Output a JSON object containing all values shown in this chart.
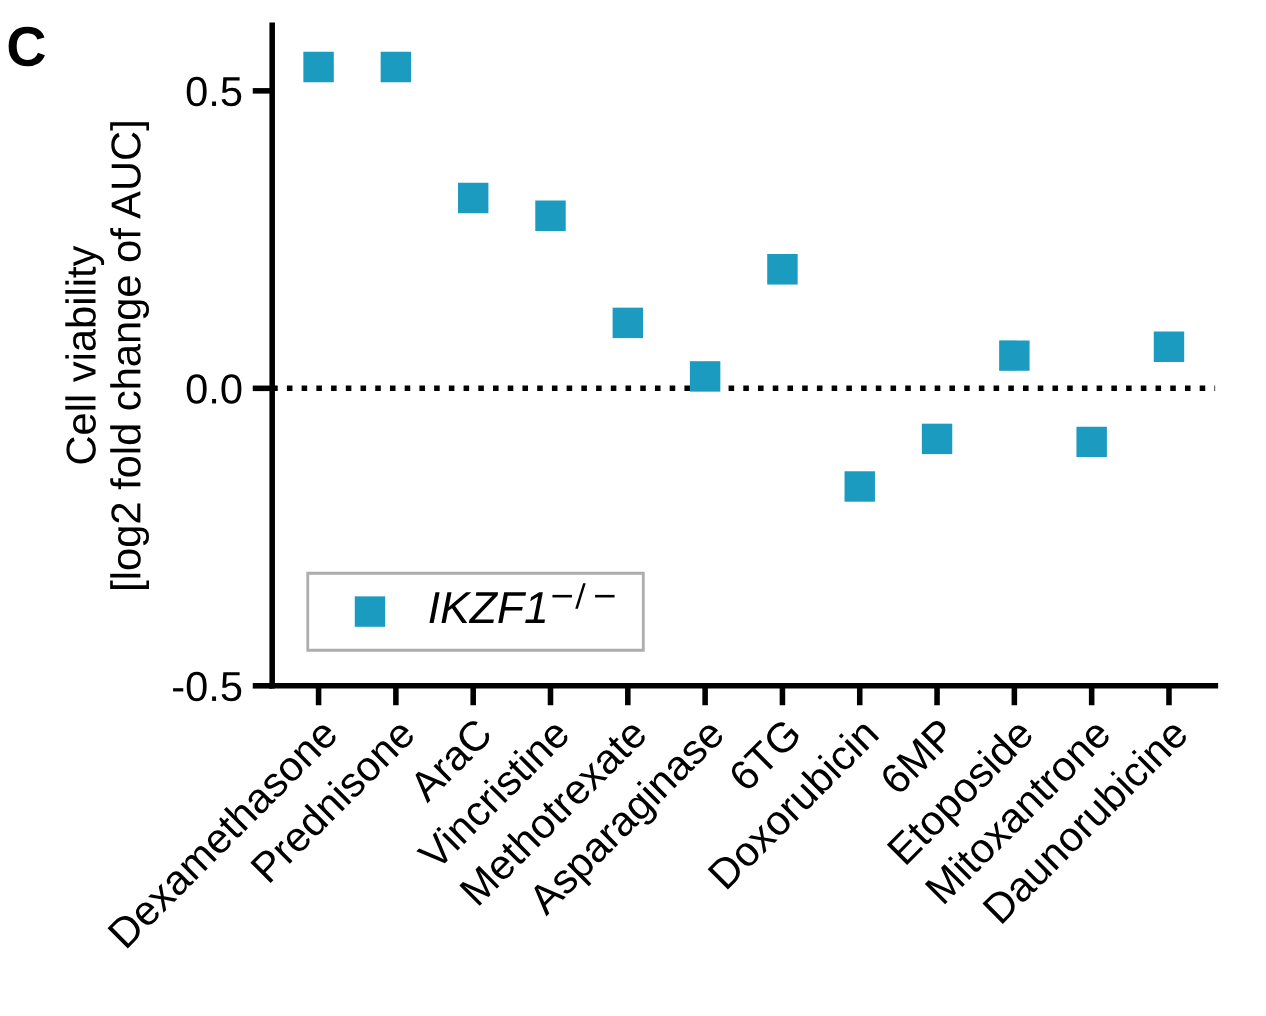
{
  "chart_data": {
    "type": "scatter",
    "ylabel": "Cell viability\n[log2 fold change of AUC]",
    "categories": [
      "Dexamethasone",
      "Prednisone",
      "AraC",
      "Vincristine",
      "Methotrexate",
      "Asparaginase",
      "6TG",
      "Doxorubicin",
      "6MP",
      "Etoposide",
      "Mitoxantrone",
      "Daunorubicine"
    ],
    "series": [
      {
        "name": "IKZF1$^{−/−}$",
        "color": "#1a9bbf",
        "values": [
          0.54,
          0.54,
          0.32,
          0.29,
          0.11,
          0.02,
          0.2,
          -0.165,
          -0.085,
          0.055,
          -0.09,
          0.07
        ]
      }
    ],
    "ylim": [
      -0.5,
      0.61
    ],
    "yticks": [
      {
        "value": -0.5,
        "label": "-0.5"
      },
      {
        "value": 0,
        "label": "0.0"
      },
      0.5
    ],
    "ref_lines": [
      {
        "axis": "y",
        "value": 0,
        "color": "#000000",
        "line_style": "dotted"
      }
    ],
    "marker": "square",
    "legend": "bottom left",
    "grid": false,
    "annotations": [
      "C"
    ]
  }
}
